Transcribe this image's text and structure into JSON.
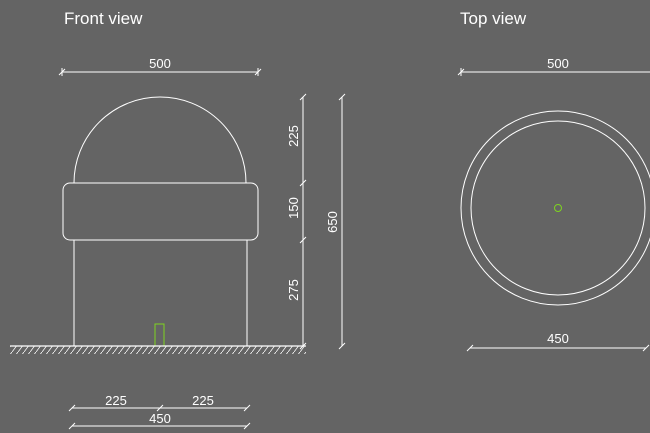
{
  "views": {
    "front": {
      "title": "Front view",
      "dims": {
        "width_top": "500",
        "dome_height": "225",
        "band_height": "150",
        "base_height": "275",
        "total_height": "650",
        "half_left": "225",
        "half_right": "225",
        "base_width": "450"
      }
    },
    "top": {
      "title": "Top view",
      "dims": {
        "outer_diameter": "500",
        "inner_diameter": "450"
      }
    }
  },
  "colors": {
    "background": "#646464",
    "line": "#ffffff",
    "accent": "#7ed321"
  }
}
